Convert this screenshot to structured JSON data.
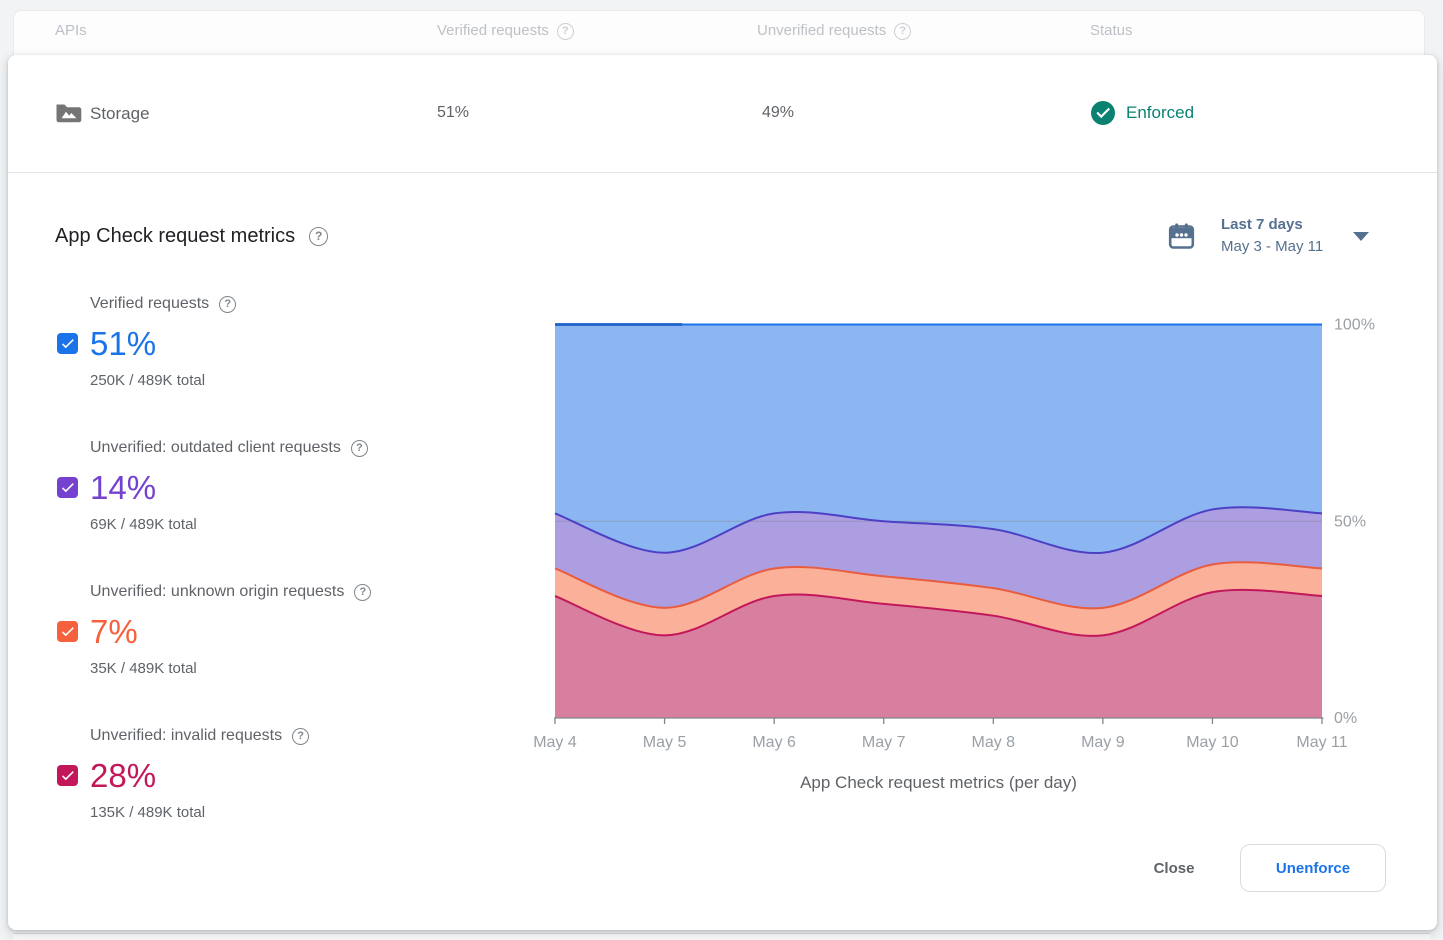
{
  "table_header": {
    "apis": "APIs",
    "verified": "Verified requests",
    "unverified": "Unverified requests",
    "status": "Status"
  },
  "api_row": {
    "name": "Storage",
    "verified_pct": "51%",
    "unverified_pct": "49%",
    "status": "Enforced",
    "status_color": "#0B8271"
  },
  "panel": {
    "title": "App Check request metrics",
    "date_picker": {
      "primary": "Last 7 days",
      "range": "May 3 - May 11",
      "color": "#56708F"
    },
    "legend": [
      {
        "label": "Verified requests",
        "percent": "51%",
        "total": "250K / 489K total",
        "color": "#1A73E8"
      },
      {
        "label": "Unverified: outdated client requests",
        "percent": "14%",
        "total": "69K / 489K total",
        "color": "#7442CE"
      },
      {
        "label": "Unverified: unknown origin requests",
        "percent": "7%",
        "total": "35K / 489K total",
        "color": "#F4613C"
      },
      {
        "label": "Unverified: invalid requests",
        "percent": "28%",
        "total": "135K / 489K total",
        "color": "#C2185B"
      }
    ],
    "caption": "App Check request metrics (per day)"
  },
  "footer": {
    "close": "Close",
    "unenforce": "Unenforce"
  },
  "chart_data": {
    "type": "area",
    "stacked": true,
    "title": "App Check request metrics (per day)",
    "x": [
      "May 4",
      "May 5",
      "May 6",
      "May 7",
      "May 8",
      "May 9",
      "May 10",
      "May 11"
    ],
    "series": [
      {
        "name": "Unverified: invalid requests",
        "values": [
          31,
          21,
          31,
          29,
          26,
          21,
          32,
          31
        ],
        "fill": "#D87E9F",
        "line": "#C2185B"
      },
      {
        "name": "Unverified: unknown origin requests",
        "values": [
          7,
          7,
          7,
          7,
          7,
          7,
          7,
          7
        ],
        "fill": "#FBB199",
        "line": "#E85C3F"
      },
      {
        "name": "Unverified: outdated client requests",
        "values": [
          14,
          14,
          14,
          14,
          15,
          14,
          14,
          14
        ],
        "fill": "#AC9EE1",
        "line": "#4C40C5"
      },
      {
        "name": "Verified requests",
        "values": [
          48,
          58,
          48,
          50,
          52,
          58,
          47,
          48
        ],
        "fill": "#8CB6F2",
        "line": "#1A73E8"
      }
    ],
    "ylim": [
      0,
      100
    ],
    "yticks": [
      {
        "value": 0,
        "label": "0%"
      },
      {
        "value": 50,
        "label": "50%"
      },
      {
        "value": 100,
        "label": "100%"
      }
    ],
    "grid": {
      "lines": [
        50
      ]
    },
    "legend_position": "left",
    "top_line_highlight": {
      "from_index": 0,
      "to_index": 1.16,
      "color": "#1B61C9"
    }
  }
}
